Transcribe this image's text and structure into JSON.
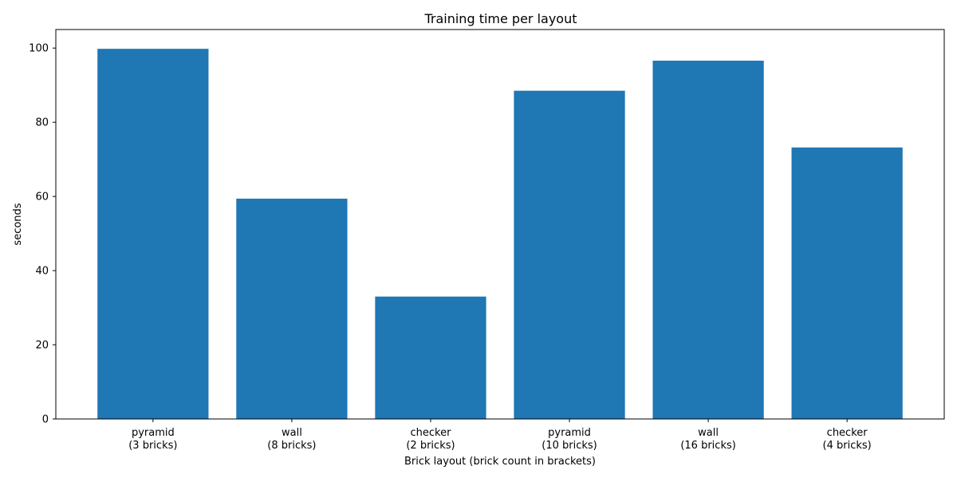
{
  "chart_data": {
    "type": "bar",
    "title": "Training time per layout",
    "xlabel": "Brick layout (brick count in brackets)",
    "ylabel": "seconds",
    "categories": [
      [
        "pyramid",
        "(3 bricks)"
      ],
      [
        "wall",
        "(8 bricks)"
      ],
      [
        "checker",
        "(2 bricks)"
      ],
      [
        "pyramid",
        "(10 bricks)"
      ],
      [
        "wall",
        "(16 bricks)"
      ],
      [
        "checker",
        "(4 bricks)"
      ]
    ],
    "values": [
      99.8,
      59.4,
      33.0,
      88.5,
      96.6,
      73.2
    ],
    "ylim": [
      0,
      105
    ],
    "yticks": [
      "0",
      "20",
      "40",
      "60",
      "80",
      "100"
    ],
    "grid": false,
    "bar_color": "#1f77b4"
  }
}
